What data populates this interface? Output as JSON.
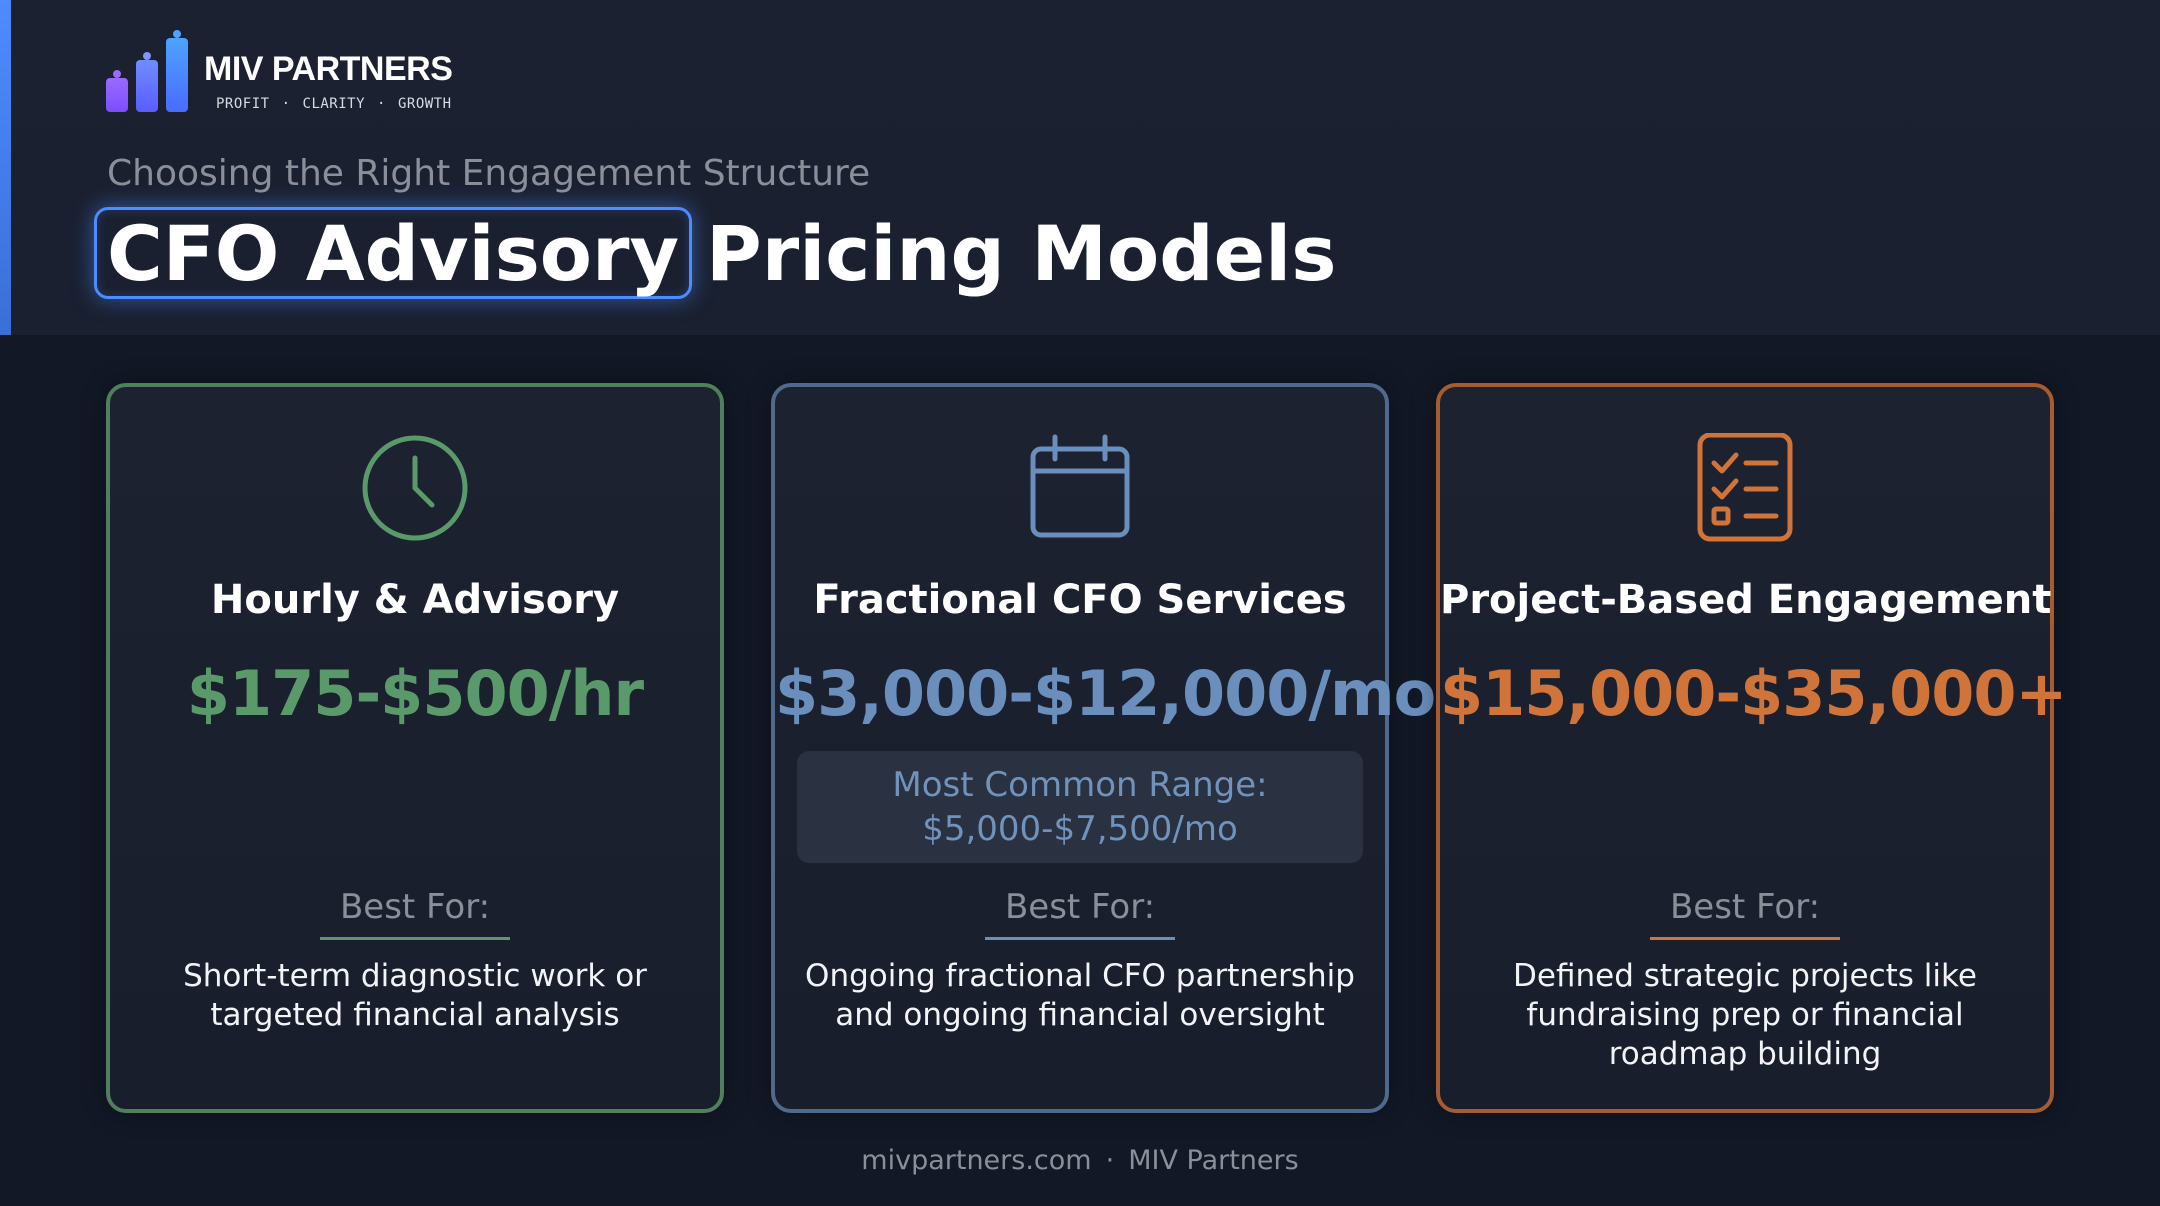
{
  "brand": {
    "name": "MIV PARTNERS",
    "tagline": [
      "PROFIT",
      "CLARITY",
      "GROWTH"
    ],
    "separator": "·",
    "accent_color": "#4d8bff",
    "logo_colors": [
      "#7c4dff",
      "#5b7cff",
      "#4da3ff"
    ]
  },
  "header": {
    "subtitle": "Choosing the Right Engagement Structure",
    "title_highlight": "CFO Advisory",
    "title_rest": "Pricing Models"
  },
  "cards": [
    {
      "icon": "clock-icon",
      "color": "#5a9a6a",
      "title": "Hourly & Advisory",
      "price": "$175-$500/hr",
      "best_for_label": "Best For:",
      "description": "Short-term diagnostic work or targeted financial analysis"
    },
    {
      "icon": "calendar-icon",
      "color": "#6a8fbd",
      "title": "Fractional CFO Services",
      "price": "$3,000-$12,000/mo",
      "common_range_label": "Most Common Range:",
      "common_range_value": "$5,000-$7,500/mo",
      "best_for_label": "Best For:",
      "description": "Ongoing fractional CFO partnership and ongoing financial oversight"
    },
    {
      "icon": "checklist-icon",
      "color": "#d0743a",
      "title": "Project-Based Engagement",
      "price": "$15,000-$35,000+",
      "best_for_label": "Best For:",
      "description": "Defined strategic projects like fundraising prep or financial roadmap building"
    }
  ],
  "footer": {
    "site": "mivpartners.com",
    "separator": "·",
    "company": "MIV Partners"
  }
}
